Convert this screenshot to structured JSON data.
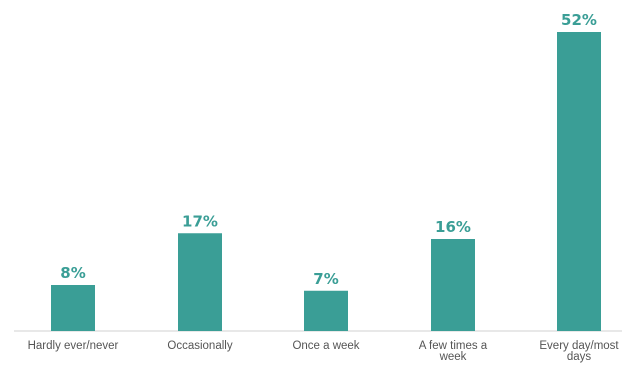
{
  "colors": {
    "bar": "#3a9e96",
    "label": "#3a9e96",
    "axis": "#d0d0d0",
    "category_text": "#555555"
  },
  "chart_data": {
    "type": "bar",
    "title": "",
    "xlabel": "",
    "ylabel": "",
    "ylim": [
      0,
      52
    ],
    "grid": false,
    "categories": [
      "Hardly ever/never",
      "Occasionally",
      "Once a week",
      "A few times a week",
      "Every day/most days"
    ],
    "values": [
      8,
      17,
      7,
      16,
      52
    ],
    "value_labels": [
      "8%",
      "17%",
      "7%",
      "16%",
      "52%"
    ]
  }
}
